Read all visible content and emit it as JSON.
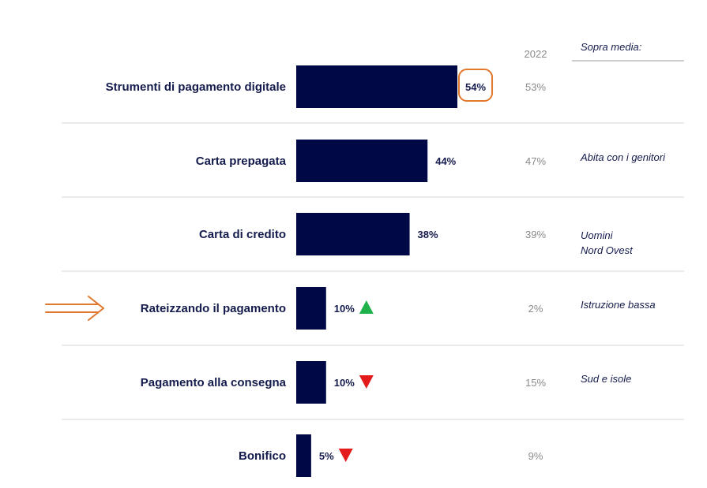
{
  "colors": {
    "bar": "#000845",
    "text": "#141b4d",
    "muted": "#8a8a8a",
    "divider": "#d7d7d7",
    "up": "#1fb24a",
    "down": "#e31b1b",
    "highlight": "#e0782e"
  },
  "chart_data": {
    "type": "bar",
    "orientation": "horizontal",
    "categories": [
      "Strumenti di pagamento digitale",
      "Carta prepagata",
      "Carta di credito",
      "Rateizzando il pagamento",
      "Pagamento alla consegna",
      "Bonifico"
    ],
    "values": [
      54,
      44,
      38,
      10,
      10,
      5
    ],
    "value_labels": [
      "54%",
      "44%",
      "38%",
      "10%",
      "10%",
      "5%"
    ],
    "trend": [
      "",
      "",
      "",
      "up",
      "down",
      "down"
    ],
    "comparison_header": "2022",
    "comparison_labels": [
      "53%",
      "47%",
      "39%",
      "2%",
      "15%",
      "9%"
    ],
    "notes_header": "Sopra media:",
    "notes": [
      [],
      [
        "Abita con i genitori"
      ],
      [
        "Uomini",
        "Nord Ovest"
      ],
      [
        "Istruzione bassa"
      ],
      [
        "Sud e isole"
      ],
      []
    ],
    "xlim": [
      0,
      54
    ],
    "highlighted_value_index": 0,
    "arrow_marked_index": 3,
    "grid": false,
    "legend": "none"
  }
}
